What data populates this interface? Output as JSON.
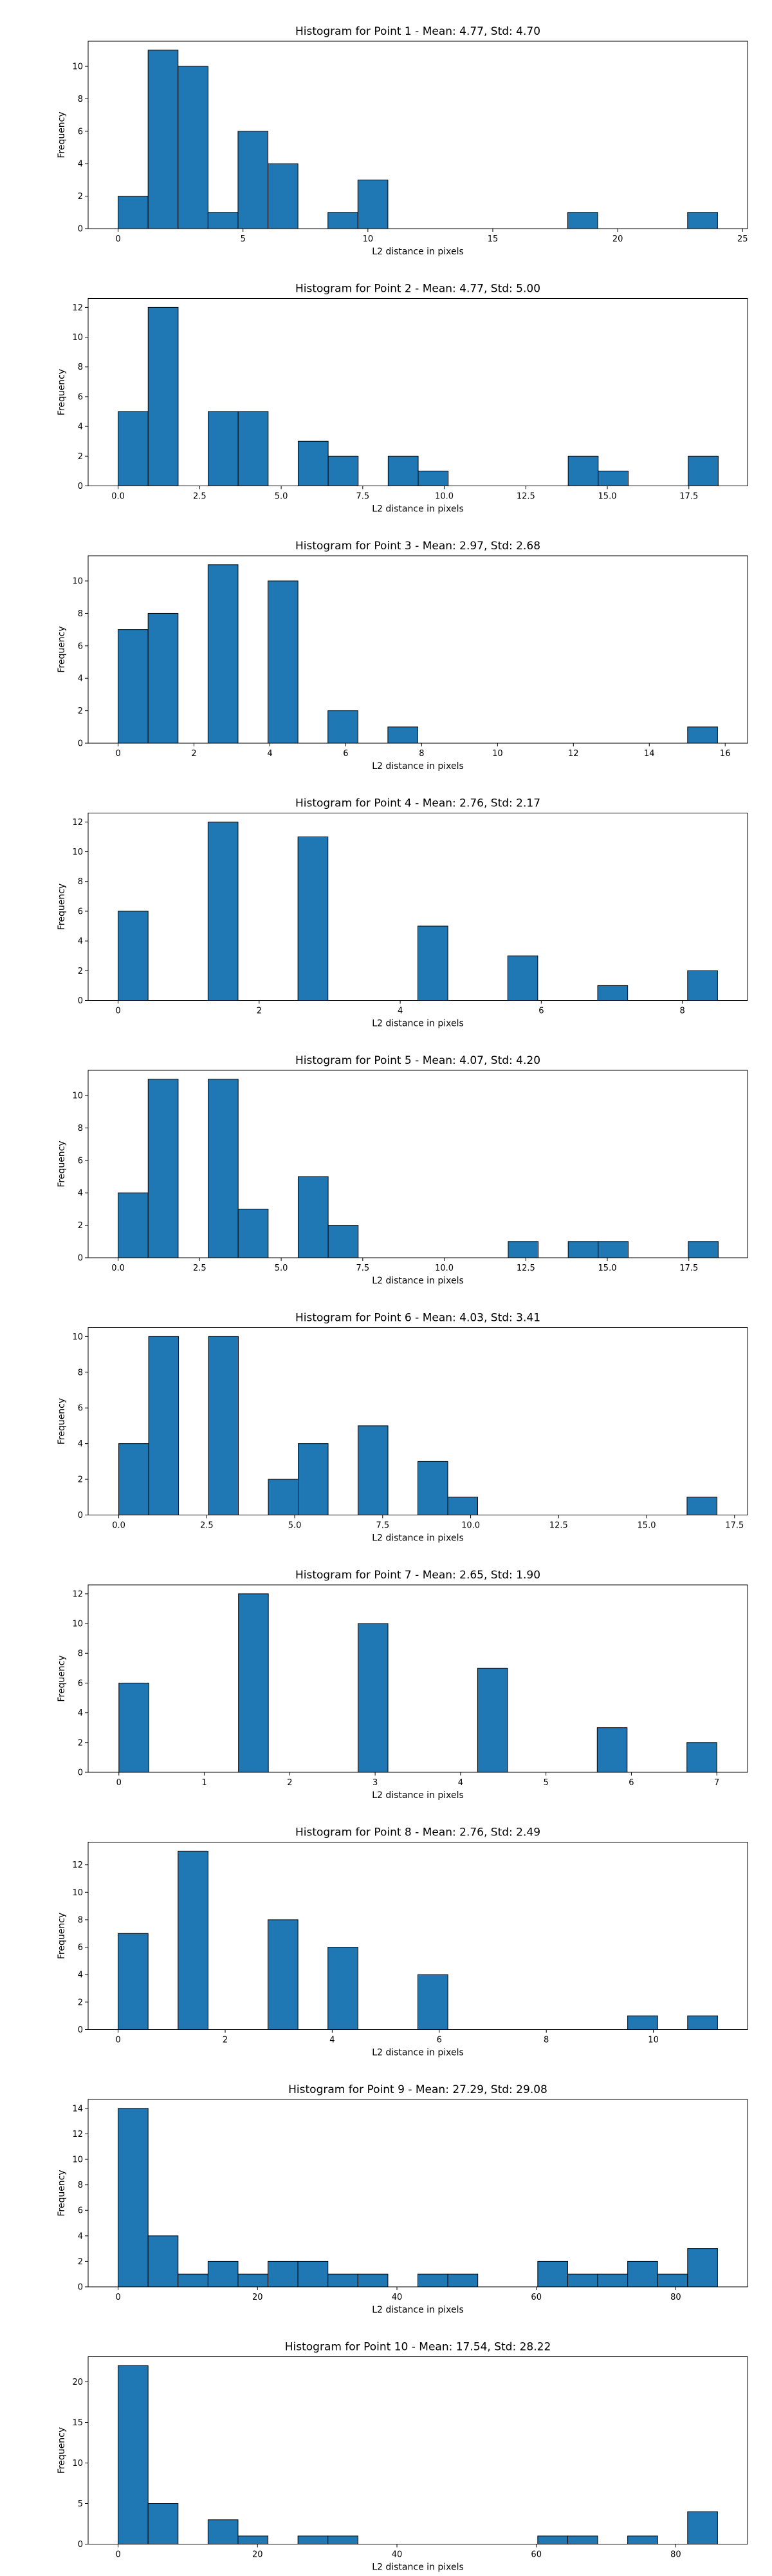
{
  "chart_data": [
    {
      "type": "bar",
      "title": "Histogram for Point 1 - Mean: 4.77, Std: 4.70",
      "xlabel": "L2 distance in pixels",
      "ylabel": "Frequency",
      "xlim": [
        -1.2,
        25.2
      ],
      "ylim": [
        0,
        11.55
      ],
      "xticks": [
        0,
        5,
        10,
        15,
        20,
        25
      ],
      "xtick_labels": [
        "0",
        "5",
        "10",
        "15",
        "20",
        "25"
      ],
      "yticks": [
        0,
        2,
        4,
        6,
        8,
        10
      ],
      "bin_width": 1.2,
      "bin_starts": [
        0,
        1.2,
        2.4,
        3.6,
        4.8,
        6.0,
        7.2,
        8.4,
        9.6,
        10.8,
        12.0,
        13.2,
        14.4,
        15.6,
        16.8,
        18.0,
        19.2,
        20.4,
        21.6,
        22.8
      ],
      "values": [
        2,
        11,
        10,
        1,
        6,
        4,
        0,
        1,
        3,
        0,
        0,
        0,
        0,
        0,
        0,
        1,
        0,
        0,
        0,
        1
      ]
    },
    {
      "type": "bar",
      "title": "Histogram for Point 2 - Mean: 4.77, Std: 5.00",
      "xlabel": "L2 distance in pixels",
      "ylabel": "Frequency",
      "xlim": [
        -0.92,
        19.3
      ],
      "ylim": [
        0,
        12.6
      ],
      "xticks": [
        0,
        2.5,
        5,
        7.5,
        10,
        12.5,
        15,
        17.5
      ],
      "xtick_labels": [
        "0.0",
        "2.5",
        "5.0",
        "7.5",
        "10.0",
        "12.5",
        "15.0",
        "17.5"
      ],
      "yticks": [
        0,
        2,
        4,
        6,
        8,
        10,
        12
      ],
      "bin_width": 0.92,
      "bin_starts": [
        0,
        0.92,
        1.84,
        2.76,
        3.68,
        4.6,
        5.52,
        6.44,
        7.36,
        8.28,
        9.2,
        10.12,
        11.04,
        11.96,
        12.88,
        13.8,
        14.72,
        15.64,
        16.56,
        17.48
      ],
      "values": [
        5,
        12,
        0,
        5,
        5,
        0,
        3,
        2,
        0,
        2,
        1,
        0,
        0,
        0,
        0,
        2,
        1,
        0,
        0,
        2
      ]
    },
    {
      "type": "bar",
      "title": "Histogram for Point 3 - Mean: 2.97, Std: 2.68",
      "xlabel": "L2 distance in pixels",
      "ylabel": "Frequency",
      "xlim": [
        -0.79,
        16.59
      ],
      "ylim": [
        0,
        11.55
      ],
      "xticks": [
        0,
        2,
        4,
        6,
        8,
        10,
        12,
        14,
        16
      ],
      "xtick_labels": [
        "0",
        "2",
        "4",
        "6",
        "8",
        "10",
        "12",
        "14",
        "16"
      ],
      "yticks": [
        0,
        2,
        4,
        6,
        8,
        10
      ],
      "bin_width": 0.79,
      "bin_starts": [
        0,
        0.79,
        1.58,
        2.37,
        3.16,
        3.95,
        4.74,
        5.53,
        6.32,
        7.11,
        7.9,
        8.69,
        9.48,
        10.27,
        11.06,
        11.85,
        12.64,
        13.43,
        14.22,
        15.01
      ],
      "values": [
        7,
        8,
        0,
        11,
        0,
        10,
        0,
        2,
        0,
        1,
        0,
        0,
        0,
        0,
        0,
        0,
        0,
        0,
        0,
        1
      ]
    },
    {
      "type": "bar",
      "title": "Histogram for Point 4 - Mean: 2.76, Std: 2.17",
      "xlabel": "L2 distance in pixels",
      "ylabel": "Frequency",
      "xlim": [
        -0.425,
        8.925
      ],
      "ylim": [
        0,
        12.6
      ],
      "xticks": [
        0,
        2,
        4,
        6,
        8
      ],
      "xtick_labels": [
        "0",
        "2",
        "4",
        "6",
        "8"
      ],
      "yticks": [
        0,
        2,
        4,
        6,
        8,
        10,
        12
      ],
      "bin_width": 0.425,
      "bin_starts": [
        0,
        0.425,
        0.85,
        1.275,
        1.7,
        2.125,
        2.55,
        2.975,
        3.4,
        3.825,
        4.25,
        4.675,
        5.1,
        5.525,
        5.95,
        6.375,
        6.8,
        7.225,
        7.65,
        8.075
      ],
      "values": [
        6,
        0,
        0,
        12,
        0,
        0,
        11,
        0,
        0,
        0,
        5,
        0,
        0,
        3,
        0,
        0,
        1,
        0,
        0,
        2
      ]
    },
    {
      "type": "bar",
      "title": "Histogram for Point 5 - Mean: 4.07, Std: 4.20",
      "xlabel": "L2 distance in pixels",
      "ylabel": "Frequency",
      "xlim": [
        -0.92,
        19.3
      ],
      "ylim": [
        0,
        11.55
      ],
      "xticks": [
        0,
        2.5,
        5,
        7.5,
        10,
        12.5,
        15,
        17.5
      ],
      "xtick_labels": [
        "0.0",
        "2.5",
        "5.0",
        "7.5",
        "10.0",
        "12.5",
        "15.0",
        "17.5"
      ],
      "yticks": [
        0,
        2,
        4,
        6,
        8,
        10
      ],
      "bin_width": 0.92,
      "bin_starts": [
        0,
        0.92,
        1.84,
        2.76,
        3.68,
        4.6,
        5.52,
        6.44,
        7.36,
        8.28,
        9.2,
        10.12,
        11.04,
        11.96,
        12.88,
        13.8,
        14.72,
        15.64,
        16.56,
        17.48
      ],
      "values": [
        4,
        11,
        0,
        11,
        3,
        0,
        5,
        2,
        0,
        0,
        0,
        0,
        0,
        1,
        0,
        1,
        1,
        0,
        0,
        1
      ]
    },
    {
      "type": "bar",
      "title": "Histogram for Point 6 - Mean: 4.03, Std: 3.41",
      "xlabel": "L2 distance in pixels",
      "ylabel": "Frequency",
      "xlim": [
        -0.87,
        17.87
      ],
      "ylim": [
        0,
        10.5
      ],
      "xticks": [
        0,
        2.5,
        5,
        7.5,
        10,
        12.5,
        15,
        17.5
      ],
      "xtick_labels": [
        "0.0",
        "2.5",
        "5.0",
        "7.5",
        "10.0",
        "12.5",
        "15.0",
        "17.5"
      ],
      "yticks": [
        0,
        2,
        4,
        6,
        8,
        10
      ],
      "bin_width": 0.85,
      "bin_starts": [
        0,
        0.85,
        1.7,
        2.55,
        3.4,
        4.25,
        5.1,
        5.95,
        6.8,
        7.65,
        8.5,
        9.35,
        10.2,
        11.05,
        11.9,
        12.75,
        13.6,
        14.45,
        15.3,
        16.15
      ],
      "values": [
        4,
        10,
        0,
        10,
        0,
        2,
        4,
        0,
        5,
        0,
        3,
        1,
        0,
        0,
        0,
        0,
        0,
        0,
        0,
        1
      ]
    },
    {
      "type": "bar",
      "title": "Histogram for Point 7 - Mean: 2.65, Std: 1.90",
      "xlabel": "L2 distance in pixels",
      "ylabel": "Frequency",
      "xlim": [
        -0.36,
        7.36
      ],
      "ylim": [
        0,
        12.6
      ],
      "xticks": [
        0,
        1,
        2,
        3,
        4,
        5,
        6,
        7
      ],
      "xtick_labels": [
        "0",
        "1",
        "2",
        "3",
        "4",
        "5",
        "6",
        "7"
      ],
      "yticks": [
        0,
        2,
        4,
        6,
        8,
        10,
        12
      ],
      "bin_width": 0.35,
      "bin_starts": [
        0,
        0.35,
        0.7,
        1.05,
        1.4,
        1.75,
        2.1,
        2.45,
        2.8,
        3.15,
        3.5,
        3.85,
        4.2,
        4.55,
        4.9,
        5.25,
        5.6,
        5.95,
        6.3,
        6.65
      ],
      "values": [
        6,
        0,
        0,
        0,
        12,
        0,
        0,
        0,
        10,
        0,
        0,
        0,
        7,
        0,
        0,
        0,
        3,
        0,
        0,
        2
      ]
    },
    {
      "type": "bar",
      "title": "Histogram for Point 8 - Mean: 2.76, Std: 2.49",
      "xlabel": "L2 distance in pixels",
      "ylabel": "Frequency",
      "xlim": [
        -0.56,
        11.76
      ],
      "ylim": [
        0,
        13.65
      ],
      "xticks": [
        0,
        2,
        4,
        6,
        8,
        10
      ],
      "xtick_labels": [
        "0",
        "2",
        "4",
        "6",
        "8",
        "10"
      ],
      "yticks": [
        0,
        2,
        4,
        6,
        8,
        10,
        12
      ],
      "bin_width": 0.56,
      "bin_starts": [
        0,
        0.56,
        1.12,
        1.68,
        2.24,
        2.8,
        3.36,
        3.92,
        4.48,
        5.04,
        5.6,
        6.16,
        6.72,
        7.28,
        7.84,
        8.4,
        8.96,
        9.52,
        10.08,
        10.64
      ],
      "values": [
        7,
        0,
        13,
        0,
        0,
        8,
        0,
        6,
        0,
        0,
        4,
        0,
        0,
        0,
        0,
        0,
        0,
        1,
        0,
        1
      ]
    },
    {
      "type": "bar",
      "title": "Histogram for Point 9 - Mean: 27.29, Std: 29.08",
      "xlabel": "L2 distance in pixels",
      "ylabel": "Frequency",
      "xlim": [
        -4.3,
        90.3
      ],
      "ylim": [
        0,
        14.7
      ],
      "xticks": [
        0,
        20,
        40,
        60,
        80
      ],
      "xtick_labels": [
        "0",
        "20",
        "40",
        "60",
        "80"
      ],
      "yticks": [
        0,
        2,
        4,
        6,
        8,
        10,
        12,
        14
      ],
      "bin_width": 4.3,
      "bin_starts": [
        0,
        4.3,
        8.6,
        12.9,
        17.2,
        21.5,
        25.8,
        30.1,
        34.4,
        38.7,
        43.0,
        47.3,
        51.6,
        55.9,
        60.2,
        64.5,
        68.8,
        73.1,
        77.4,
        81.7
      ],
      "values": [
        14,
        4,
        1,
        2,
        1,
        2,
        2,
        1,
        1,
        0,
        1,
        1,
        0,
        0,
        2,
        1,
        1,
        2,
        1,
        3
      ]
    },
    {
      "type": "bar",
      "title": "Histogram for Point 10 - Mean: 17.54, Std: 28.22",
      "xlabel": "L2 distance in pixels",
      "ylabel": "Frequency",
      "xlim": [
        -4.3,
        90.3
      ],
      "ylim": [
        0,
        23.1
      ],
      "xticks": [
        0,
        20,
        40,
        60,
        80
      ],
      "xtick_labels": [
        "0",
        "20",
        "40",
        "60",
        "80"
      ],
      "yticks": [
        0,
        5,
        10,
        15,
        20
      ],
      "bin_width": 4.3,
      "bin_starts": [
        0,
        4.3,
        8.6,
        12.9,
        17.2,
        21.5,
        25.8,
        30.1,
        34.4,
        38.7,
        43.0,
        47.3,
        51.6,
        55.9,
        60.2,
        64.5,
        68.8,
        73.1,
        77.4,
        81.7
      ],
      "values": [
        22,
        5,
        0,
        3,
        1,
        0,
        1,
        1,
        0,
        0,
        0,
        0,
        0,
        0,
        1,
        1,
        0,
        1,
        0,
        4
      ]
    }
  ],
  "style": {
    "bar_color": "#1f77b4",
    "edge_color": "#000000",
    "background": "#ffffff"
  }
}
